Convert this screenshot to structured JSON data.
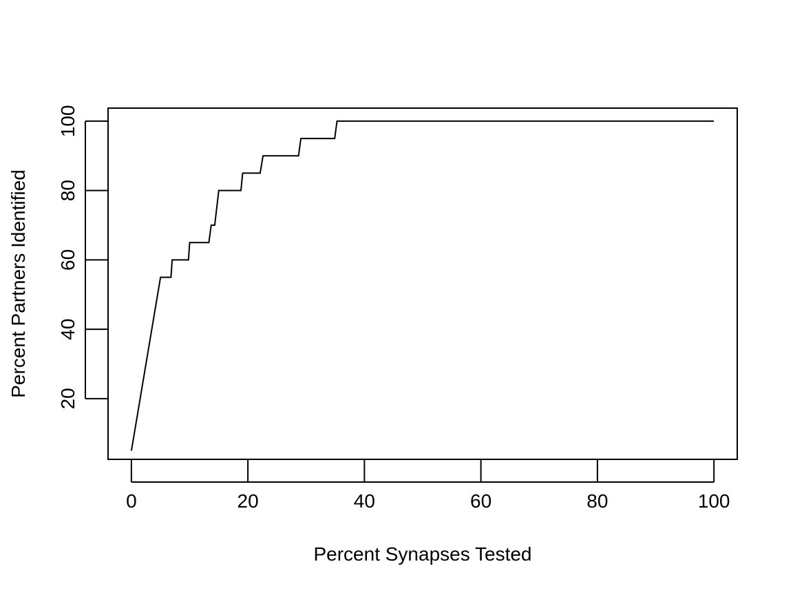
{
  "chart_data": {
    "type": "line",
    "title": "",
    "xlabel": "Percent Synapses Tested",
    "ylabel": "Percent Partners Identified",
    "xlim": [
      -4,
      104
    ],
    "ylim": [
      2.5,
      103.75
    ],
    "xticks": [
      0,
      20,
      40,
      60,
      80,
      100
    ],
    "yticks": [
      20,
      40,
      60,
      80,
      100
    ],
    "xtick_labels": [
      "0",
      "20",
      "40",
      "60",
      "80",
      "100"
    ],
    "ytick_labels": [
      "20",
      "40",
      "60",
      "80",
      "100"
    ],
    "grid": false,
    "legend": "none",
    "line_color": "#000000",
    "series": [
      {
        "x": [
          0,
          5,
          6.8,
          7,
          9.8,
          10,
          13.3,
          13.7,
          14.3,
          15,
          18.8,
          19.1,
          22.1,
          22.6,
          28.7,
          29.1,
          34.9,
          35.3,
          100
        ],
        "y": [
          5,
          55,
          55,
          60,
          60,
          65,
          65,
          70,
          70,
          80,
          80,
          85,
          85,
          90,
          90,
          95,
          95,
          100,
          100
        ]
      }
    ]
  }
}
